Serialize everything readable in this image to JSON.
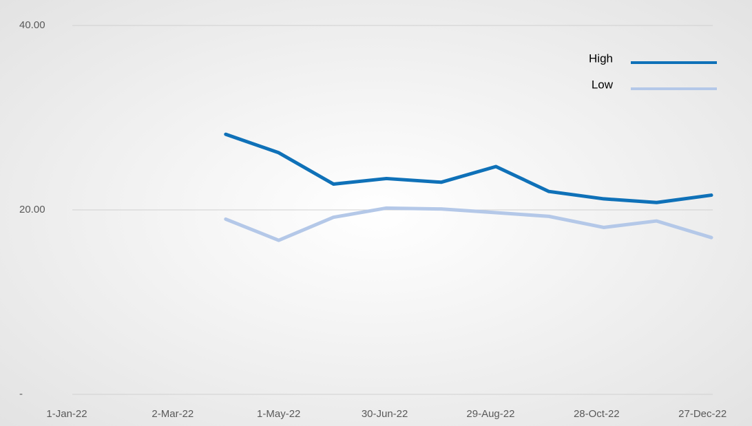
{
  "chart_data": {
    "type": "line",
    "x": [
      "2022-04-01",
      "2022-05-01",
      "2022-06-01",
      "2022-07-01",
      "2022-08-01",
      "2022-09-01",
      "2022-10-01",
      "2022-11-01",
      "2022-12-01",
      "2023-01-01"
    ],
    "series": [
      {
        "name": "High",
        "color": "#0f71b8",
        "values": [
          28.2,
          26.2,
          22.8,
          23.4,
          23.0,
          24.7,
          22.0,
          21.2,
          20.8,
          21.6
        ]
      },
      {
        "name": "Low",
        "color": "#b4c8e8",
        "values": [
          19.0,
          16.7,
          19.2,
          20.2,
          20.1,
          19.7,
          19.3,
          18.1,
          18.8,
          17.0
        ]
      }
    ],
    "xlim": [
      "2022-01-01",
      "2023-01-01"
    ],
    "xticks": [
      {
        "value": "2022-01-01",
        "label": "1-Jan-22"
      },
      {
        "value": "2022-03-02",
        "label": "2-Mar-22"
      },
      {
        "value": "2022-05-01",
        "label": "1-May-22"
      },
      {
        "value": "2022-06-30",
        "label": "30-Jun-22"
      },
      {
        "value": "2022-08-29",
        "label": "29-Aug-22"
      },
      {
        "value": "2022-10-28",
        "label": "28-Oct-22"
      },
      {
        "value": "2022-12-27",
        "label": "27-Dec-22"
      }
    ],
    "ylim": [
      0,
      40
    ],
    "yticks": [
      {
        "value": 0,
        "label": "-"
      },
      {
        "value": 20,
        "label": "20.00"
      },
      {
        "value": 40,
        "label": "40.00"
      }
    ],
    "grid": true,
    "legend": "top-right"
  }
}
